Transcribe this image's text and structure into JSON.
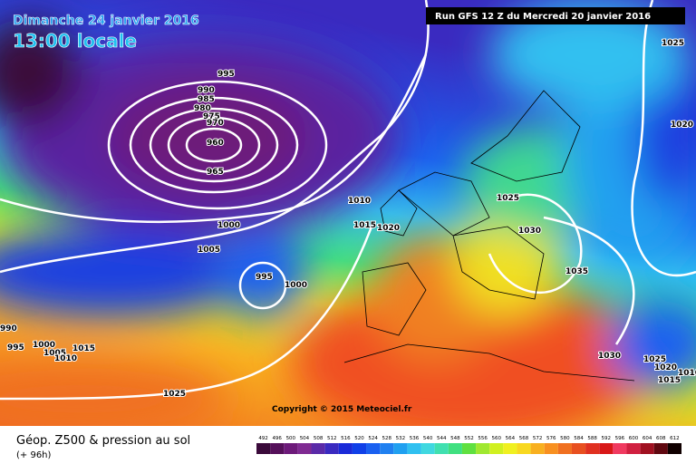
{
  "header": {
    "date": "Dimanche 24 janvier 2016",
    "time": "13:00 locale",
    "run": "Run GFS 12 Z du Mercredi 20 janvier 2016"
  },
  "copyright": "Copyright © 2015 Meteociel.fr",
  "isobar_labels": [
    "995",
    "990",
    "985",
    "980",
    "975",
    "970",
    "960",
    "965",
    "1000",
    "1005",
    "995",
    "1000",
    "1010",
    "1015",
    "1020",
    "1025",
    "1030",
    "1035",
    "1025",
    "1020",
    "1030",
    "1025",
    "1020",
    "1015",
    "1010",
    "990",
    "995",
    "1000",
    "1005",
    "1010",
    "1015",
    "1025"
  ],
  "footer": {
    "title": "Géop. Z500 & pression au sol",
    "subtitle": "(+ 96h)"
  },
  "scale": {
    "labels": [
      "492",
      "496",
      "500",
      "504",
      "508",
      "512",
      "516",
      "520",
      "524",
      "528",
      "532",
      "536",
      "540",
      "544",
      "548",
      "552",
      "556",
      "560",
      "564",
      "568",
      "572",
      "576",
      "580",
      "584",
      "588",
      "592",
      "596",
      "600",
      "604",
      "608",
      "612"
    ],
    "colors": [
      "#3a0a3a",
      "#55105a",
      "#6d1a7a",
      "#7f2a92",
      "#5a2aa8",
      "#3a2ac0",
      "#1a2ad8",
      "#1040e8",
      "#1a60f0",
      "#2080f0",
      "#20a0f0",
      "#30c0f0",
      "#40d8e0",
      "#40e0b0",
      "#40e080",
      "#60e040",
      "#a0e830",
      "#d0f020",
      "#f0f020",
      "#f8d820",
      "#f8b020",
      "#f89020",
      "#f07020",
      "#e85020",
      "#e03020",
      "#d81818",
      "#f03a60",
      "#d02040",
      "#a01020",
      "#600810",
      "#100000"
    ]
  }
}
